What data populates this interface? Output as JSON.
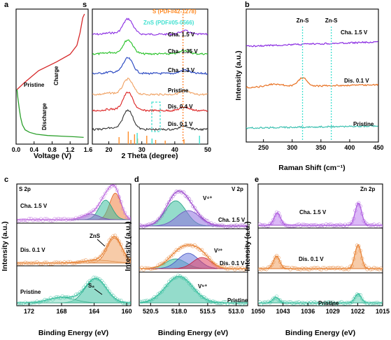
{
  "chart_data": [
    {
      "panel": "a",
      "type": "line",
      "xlabel": "Voltage (V)",
      "ylabel": "",
      "xlim": [
        0.0,
        1.6
      ],
      "xticks": [
        "0.0",
        "0.4",
        "0.8",
        "1.2",
        "1.6"
      ],
      "annotations": [
        "Charge",
        "Pristine",
        "Discharge"
      ],
      "series": [
        {
          "name": "Charge",
          "color": "#d62728",
          "x": [
            0.02,
            0.2,
            0.5,
            0.9,
            1.2,
            1.35,
            1.42,
            1.48,
            1.52
          ],
          "y": [
            0.4,
            0.46,
            0.55,
            0.62,
            0.68,
            0.75,
            0.85,
            0.97,
            1.0
          ]
        },
        {
          "name": "Discharge",
          "color": "#2ca02c",
          "x": [
            0.02,
            0.04,
            0.07,
            0.1,
            0.14,
            0.2,
            0.3,
            0.45,
            0.7,
            1.0,
            1.3,
            1.5
          ],
          "y": [
            0.4,
            0.33,
            0.25,
            0.18,
            0.12,
            0.08,
            0.06,
            0.045,
            0.035,
            0.03,
            0.025,
            0.02
          ]
        }
      ]
    },
    {
      "panel": "s",
      "type": "line",
      "xlabel": "2 Theta (degree)",
      "xlim": [
        15,
        50
      ],
      "xticks": [
        "20",
        "30",
        "40",
        "50"
      ],
      "references": [
        {
          "name": "S (PDF#42-1278)",
          "color": "#ff8c28",
          "positions": [
            23.1,
            25.9,
            26.7,
            27.8,
            28.7,
            31.5,
            34.2,
            37.1,
            42.8
          ]
        },
        {
          "name": "ZnS (PDF#05-0566)",
          "color": "#40e0d0",
          "positions": [
            28.6,
            33.1,
            47.5
          ]
        }
      ],
      "marker_line_x": 42.5,
      "series": [
        {
          "name": "Cha. 1.5 V",
          "color": "#8a2be2"
        },
        {
          "name": "Cha. 1.35 V",
          "color": "#22c022"
        },
        {
          "name": "Cha. 1.3 V",
          "color": "#1f3fbf"
        },
        {
          "name": "Pristine",
          "color": "#f0a060"
        },
        {
          "name": "Dis. 0.4 V",
          "color": "#dc2020"
        },
        {
          "name": "Dis. 0.1 V",
          "color": "#333333"
        }
      ]
    },
    {
      "panel": "b",
      "type": "line",
      "xlabel": "Raman Shift (cm⁻¹)",
      "ylabel": "Intensity (a.u.)",
      "xlim": [
        220,
        450
      ],
      "xticks": [
        "250",
        "300",
        "350",
        "400",
        "450"
      ],
      "peak_labels": [
        {
          "label": "Zn-S",
          "x": 318
        },
        {
          "label": "Zn-S",
          "x": 368
        }
      ],
      "series": [
        {
          "name": "Cha. 1.5 V",
          "color": "#8a2be2"
        },
        {
          "name": "Dis. 0.1 V",
          "color": "#e87020"
        },
        {
          "name": "Pristine",
          "color": "#3cc0b0"
        }
      ]
    },
    {
      "panel": "c",
      "type": "line",
      "title": "S 2p",
      "xlabel": "Binding Energy (eV)",
      "ylabel": "Intensity (a.u.)",
      "xlim": [
        173.5,
        159.5
      ],
      "xticks": [
        "172",
        "168",
        "164",
        "160"
      ],
      "annotations": [
        "ZnS",
        "S₈"
      ],
      "series": [
        {
          "name": "Cha. 1.5 V",
          "color": "#c070e0"
        },
        {
          "name": "Dis. 0.1 V",
          "color": "#e8863a"
        },
        {
          "name": "Pristine",
          "color": "#3cc0a0"
        }
      ]
    },
    {
      "panel": "d",
      "type": "line",
      "title": "V 2p",
      "xlabel": "Binding Energy (eV)",
      "ylabel": "Intensity (a.u.)",
      "xlim": [
        521.5,
        512.0
      ],
      "xticks": [
        "520.5",
        "518.0",
        "515.5",
        "513.0"
      ],
      "annotations": [
        "V⁴⁺",
        "V³⁺",
        "V⁵⁺"
      ],
      "series": [
        {
          "name": "Cha. 1.5 V",
          "color": "#a050d0"
        },
        {
          "name": "Dis. 0.1 V",
          "color": "#e8863a"
        },
        {
          "name": "Pristine",
          "color": "#3cc0a0"
        }
      ]
    },
    {
      "panel": "e",
      "type": "line",
      "title": "Zn 2p",
      "xlabel": "Binding Energy (eV)",
      "ylabel": "Intensity (a.u.)",
      "xlim": [
        1050,
        1015
      ],
      "xticks": [
        "1050",
        "1043",
        "1036",
        "1029",
        "1022",
        "1015"
      ],
      "series": [
        {
          "name": "Cha. 1.5 V",
          "color": "#b060e0"
        },
        {
          "name": "Dis. 0.1 V",
          "color": "#e8863a"
        },
        {
          "name": "Pristine",
          "color": "#3cc0a0"
        }
      ]
    }
  ],
  "labels": {
    "a": "a",
    "s": "s",
    "b": "b",
    "c": "c",
    "d": "d",
    "e": "e"
  }
}
